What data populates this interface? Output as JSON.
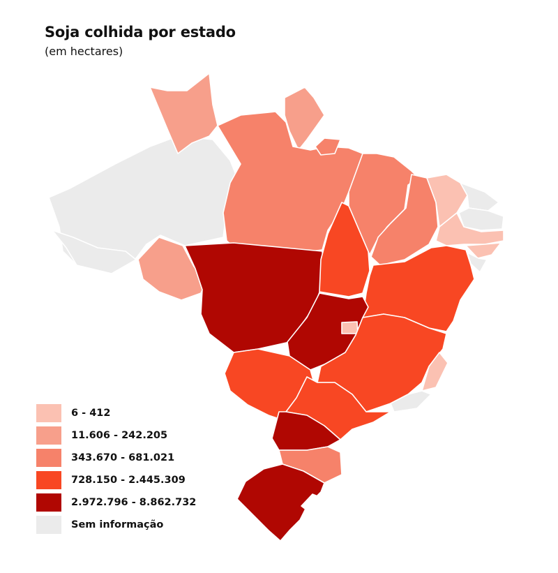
{
  "title": "Soja colhida por estado",
  "subtitle": "(em hectares)",
  "legend": [
    {
      "label": "6 - 412",
      "color": "#fbc1b2"
    },
    {
      "label": "11.606 - 242.205",
      "color": "#f79f8b"
    },
    {
      "label": "343.670 - 681.021",
      "color": "#f6826a"
    },
    {
      "label": "728.150 - 2.445.309",
      "color": "#f84723"
    },
    {
      "label": "2.972.796 - 8.862.732",
      "color": "#b00702"
    },
    {
      "label": "Sem informação",
      "color": "#ebebeb"
    }
  ],
  "states": {
    "AM": {
      "class": "Sem informação"
    },
    "RR": {
      "class": "11.606 - 242.205"
    },
    "AP": {
      "class": "11.606 - 242.205"
    },
    "PA": {
      "class": "343.670 - 681.021"
    },
    "AC": {
      "class": "Sem informação"
    },
    "RO": {
      "class": "11.606 - 242.205"
    },
    "MT": {
      "class": "2.972.796 - 8.862.732"
    },
    "TO": {
      "class": "728.150 - 2.445.309"
    },
    "MA": {
      "class": "343.670 - 681.021"
    },
    "PI": {
      "class": "343.670 - 681.021"
    },
    "CE": {
      "class": "6 - 412"
    },
    "RN": {
      "class": "Sem informação"
    },
    "PB": {
      "class": "Sem informação"
    },
    "PE": {
      "class": "6 - 412"
    },
    "AL": {
      "class": "6 - 412"
    },
    "SE": {
      "class": "Sem informação"
    },
    "BA": {
      "class": "728.150 - 2.445.309"
    },
    "GO": {
      "class": "2.972.796 - 8.862.732"
    },
    "DF": {
      "class": "6 - 412"
    },
    "MG": {
      "class": "728.150 - 2.445.309"
    },
    "ES": {
      "class": "6 - 412"
    },
    "RJ": {
      "class": "Sem informação"
    },
    "MS": {
      "class": "728.150 - 2.445.309"
    },
    "SP": {
      "class": "728.150 - 2.445.309"
    },
    "PR": {
      "class": "2.972.796 - 8.862.732"
    },
    "SC": {
      "class": "343.670 - 681.021"
    },
    "RS": {
      "class": "2.972.796 - 8.862.732"
    }
  }
}
